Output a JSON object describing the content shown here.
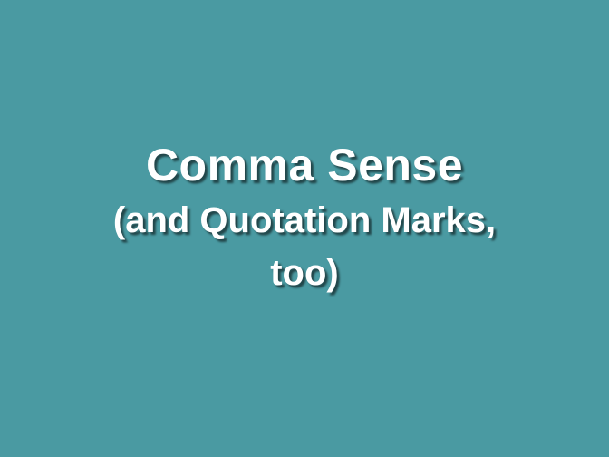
{
  "slide": {
    "background_color": "#4A9AA2",
    "title": {
      "line1": "Comma Sense",
      "line2": "(and Quotation Marks,",
      "line3": "too)"
    }
  }
}
